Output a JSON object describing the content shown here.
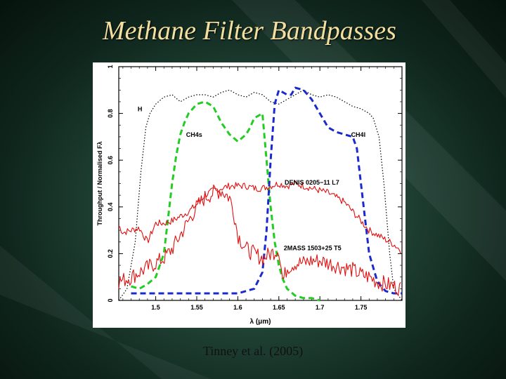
{
  "slide": {
    "title": "Methane Filter Bandpasses",
    "caption": "Tinney et al. (2005)"
  },
  "colors": {
    "H": "#000000",
    "CH4s": "#22cc22",
    "CH4l": "#1a2acc",
    "spectra": "#e01010",
    "title": "#f2dfa0"
  },
  "chart_data": {
    "type": "line",
    "xlabel": "λ (μm)",
    "ylabel": "Throughput / Normalised Fλ",
    "xlim": [
      1.455,
      1.8
    ],
    "ylim": [
      0,
      1
    ],
    "xticks": [
      1.5,
      1.55,
      1.6,
      1.65,
      1.7,
      1.75
    ],
    "xtick_labels": [
      "1.5",
      "1.55",
      "1.6",
      "1.65",
      "1.7",
      "1.75"
    ],
    "yticks": [
      0,
      0.2,
      0.4,
      0.6,
      0.8,
      1
    ],
    "ytick_labels": [
      "0",
      "0.2",
      "0.4",
      "0.6",
      "0.8",
      "1"
    ],
    "grid": false,
    "series": [
      {
        "name": "H",
        "style": "dotted",
        "x": [
          1.455,
          1.465,
          1.475,
          1.482,
          1.488,
          1.493,
          1.5,
          1.51,
          1.52,
          1.53,
          1.54,
          1.55,
          1.56,
          1.57,
          1.58,
          1.59,
          1.6,
          1.61,
          1.62,
          1.63,
          1.64,
          1.65,
          1.66,
          1.67,
          1.68,
          1.69,
          1.7,
          1.71,
          1.72,
          1.73,
          1.74,
          1.75,
          1.76,
          1.765,
          1.772,
          1.778,
          1.785,
          1.79,
          1.8
        ],
        "y": [
          0.0,
          0.05,
          0.25,
          0.55,
          0.74,
          0.8,
          0.84,
          0.87,
          0.88,
          0.85,
          0.87,
          0.88,
          0.88,
          0.87,
          0.89,
          0.9,
          0.88,
          0.87,
          0.89,
          0.88,
          0.85,
          0.84,
          0.86,
          0.88,
          0.9,
          0.88,
          0.87,
          0.88,
          0.87,
          0.85,
          0.83,
          0.82,
          0.8,
          0.78,
          0.7,
          0.5,
          0.2,
          0.05,
          0.0
        ]
      },
      {
        "name": "CH4s",
        "style": "dashed",
        "x": [
          1.47,
          1.48,
          1.49,
          1.5,
          1.51,
          1.515,
          1.52,
          1.525,
          1.53,
          1.535,
          1.54,
          1.55,
          1.56,
          1.57,
          1.58,
          1.59,
          1.6,
          1.61,
          1.615,
          1.62,
          1.63,
          1.635,
          1.64,
          1.645,
          1.65,
          1.655,
          1.66,
          1.67,
          1.68,
          1.69,
          1.7
        ],
        "y": [
          0.06,
          0.05,
          0.07,
          0.1,
          0.2,
          0.35,
          0.5,
          0.62,
          0.71,
          0.76,
          0.8,
          0.84,
          0.85,
          0.83,
          0.76,
          0.71,
          0.68,
          0.71,
          0.74,
          0.78,
          0.8,
          0.6,
          0.4,
          0.25,
          0.15,
          0.09,
          0.05,
          0.02,
          0.01,
          0.01,
          0.0
        ]
      },
      {
        "name": "CH4l",
        "style": "dashed",
        "x": [
          1.47,
          1.5,
          1.55,
          1.58,
          1.6,
          1.62,
          1.63,
          1.635,
          1.64,
          1.645,
          1.65,
          1.655,
          1.66,
          1.665,
          1.67,
          1.68,
          1.69,
          1.7,
          1.71,
          1.72,
          1.73,
          1.74,
          1.745,
          1.75,
          1.755,
          1.76,
          1.77,
          1.78,
          1.79,
          1.8
        ],
        "y": [
          0.03,
          0.03,
          0.03,
          0.03,
          0.03,
          0.05,
          0.12,
          0.3,
          0.6,
          0.84,
          0.9,
          0.89,
          0.88,
          0.88,
          0.91,
          0.9,
          0.86,
          0.8,
          0.74,
          0.72,
          0.71,
          0.7,
          0.65,
          0.5,
          0.35,
          0.2,
          0.08,
          0.04,
          0.03,
          0.03
        ]
      },
      {
        "name": "DENIS 0205-11 L7",
        "style": "solid",
        "x": [
          1.455,
          1.46,
          1.47,
          1.48,
          1.49,
          1.5,
          1.51,
          1.52,
          1.53,
          1.54,
          1.55,
          1.56,
          1.57,
          1.58,
          1.59,
          1.6,
          1.61,
          1.62,
          1.63,
          1.64,
          1.65,
          1.66,
          1.67,
          1.68,
          1.69,
          1.7,
          1.71,
          1.72,
          1.73,
          1.74,
          1.75,
          1.76,
          1.77,
          1.78,
          1.79,
          1.8
        ],
        "y": [
          0.32,
          0.29,
          0.3,
          0.31,
          0.25,
          0.33,
          0.33,
          0.34,
          0.36,
          0.38,
          0.41,
          0.45,
          0.47,
          0.48,
          0.49,
          0.49,
          0.49,
          0.48,
          0.48,
          0.49,
          0.5,
          0.49,
          0.5,
          0.49,
          0.48,
          0.47,
          0.46,
          0.44,
          0.42,
          0.38,
          0.34,
          0.3,
          0.28,
          0.26,
          0.24,
          0.21
        ]
      },
      {
        "name": "2MASS 1503+25 T5",
        "style": "solid",
        "x": [
          1.455,
          1.47,
          1.48,
          1.49,
          1.5,
          1.51,
          1.52,
          1.53,
          1.54,
          1.55,
          1.56,
          1.57,
          1.58,
          1.59,
          1.595,
          1.6,
          1.61,
          1.62,
          1.63,
          1.64,
          1.65,
          1.655,
          1.66,
          1.67,
          1.68,
          1.69,
          1.7,
          1.71,
          1.72,
          1.73,
          1.74,
          1.75,
          1.76,
          1.77,
          1.78,
          1.79,
          1.8
        ],
        "y": [
          0.08,
          0.1,
          0.12,
          0.14,
          0.16,
          0.18,
          0.22,
          0.28,
          0.34,
          0.4,
          0.44,
          0.46,
          0.47,
          0.44,
          0.38,
          0.28,
          0.22,
          0.2,
          0.18,
          0.2,
          0.22,
          0.08,
          0.14,
          0.16,
          0.16,
          0.17,
          0.17,
          0.16,
          0.15,
          0.14,
          0.13,
          0.11,
          0.1,
          0.08,
          0.07,
          0.06,
          0.05
        ]
      }
    ],
    "annotations": [
      {
        "text": "H",
        "x": 1.478,
        "y": 0.81
      },
      {
        "text": "CH4s",
        "x": 1.537,
        "y": 0.7
      },
      {
        "text": "CH4l",
        "x": 1.738,
        "y": 0.7
      },
      {
        "text": "DENIS 0205−11 L7",
        "x": 1.657,
        "y": 0.495
      },
      {
        "text": "2MASS 1503+25 T5",
        "x": 1.656,
        "y": 0.215
      }
    ]
  }
}
